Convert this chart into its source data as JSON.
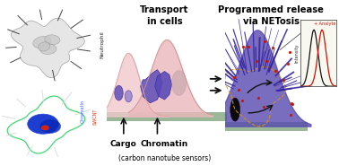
{
  "title_transport": "Transport\nin cells",
  "title_release": "Programmed release\nvia NETosis",
  "label_cargo": "Cargo",
  "label_chromatin": "Chromatin",
  "label_sensors": "(carbon nanotube sensors)",
  "label_neutrophil": "Neutrophil",
  "label_chromatin_legend": "Chromatin",
  "label_swcnt": "SWCNT",
  "label_analyte": "+ Analyte",
  "label_intensity": "Intensity",
  "bg_color": "#ffffff",
  "panel_top_bg": "#b8cdd8",
  "panel_bot_bg": "#030303",
  "cell_body_left": "#f0c8cc",
  "cell_body_right": "#eab8bc",
  "chromatin_purple": "#6858b8",
  "chromatin_light": "#9080cc",
  "net_purple": "#5848b0",
  "net_purple_dark": "#3828a0",
  "cargo_black": "#0a0808",
  "arrow_color": "#111111",
  "surface_color": "#9ab898",
  "surface_color2": "#b0c8b0",
  "red_dot": "#cc1100",
  "inset_bg": "#f8f8f0",
  "dashed_outline": "#cc8800"
}
